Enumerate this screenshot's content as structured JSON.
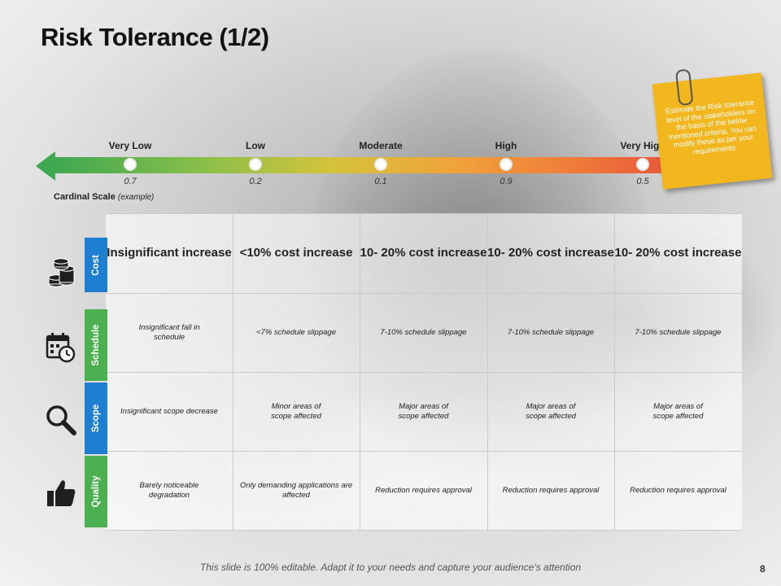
{
  "title": "Risk Tolerance (1/2)",
  "scale": {
    "levels": [
      "Very Low",
      "Low",
      "Moderate",
      "High",
      "Very High"
    ],
    "values": [
      "0.7",
      "0.2",
      "0.1",
      "0.9",
      "0.5"
    ],
    "caption_main": "Cardinal Scale",
    "caption_sub": "(example)"
  },
  "note": {
    "text": "Estimate the Risk tolerance level of the stakeholders on the basis of the below mentioned criteria. You can modify these as per your requirements"
  },
  "table": {
    "rows": [
      {
        "label": "Cost",
        "color": "#1e7fd1",
        "icon": "coins-icon",
        "cells": [
          "Insignificant increase",
          "<10% cost increase",
          "10- 20% cost increase",
          "10- 20% cost increase",
          "10- 20% cost increase"
        ]
      },
      {
        "label": "Schedule",
        "color": "#4cb050",
        "icon": "calendar-clock-icon",
        "cells": [
          "Insignificant fall in schedule",
          "<7% schedule slippage",
          "7-10% schedule slippage",
          "7-10% schedule slippage",
          "7-10% schedule slippage"
        ]
      },
      {
        "label": "Scope",
        "color": "#1e7fd1",
        "icon": "magnifier-icon",
        "cells": [
          "Insignificant scope decrease",
          "Minor areas of scope affected",
          "Major areas of scope affected",
          "Major areas of scope affected",
          "Major areas of scope affected"
        ]
      },
      {
        "label": "Quality",
        "color": "#4cb050",
        "icon": "thumbs-up-icon",
        "cells": [
          "Barely noticeable degradation",
          "Only demanding applications are affected",
          "Reduction requires approval",
          "Reduction requires approval",
          "Reduction requires approval"
        ]
      }
    ]
  },
  "footer": "This slide is 100% editable. Adapt it to your needs and capture your audience's attention",
  "page_number": "8"
}
